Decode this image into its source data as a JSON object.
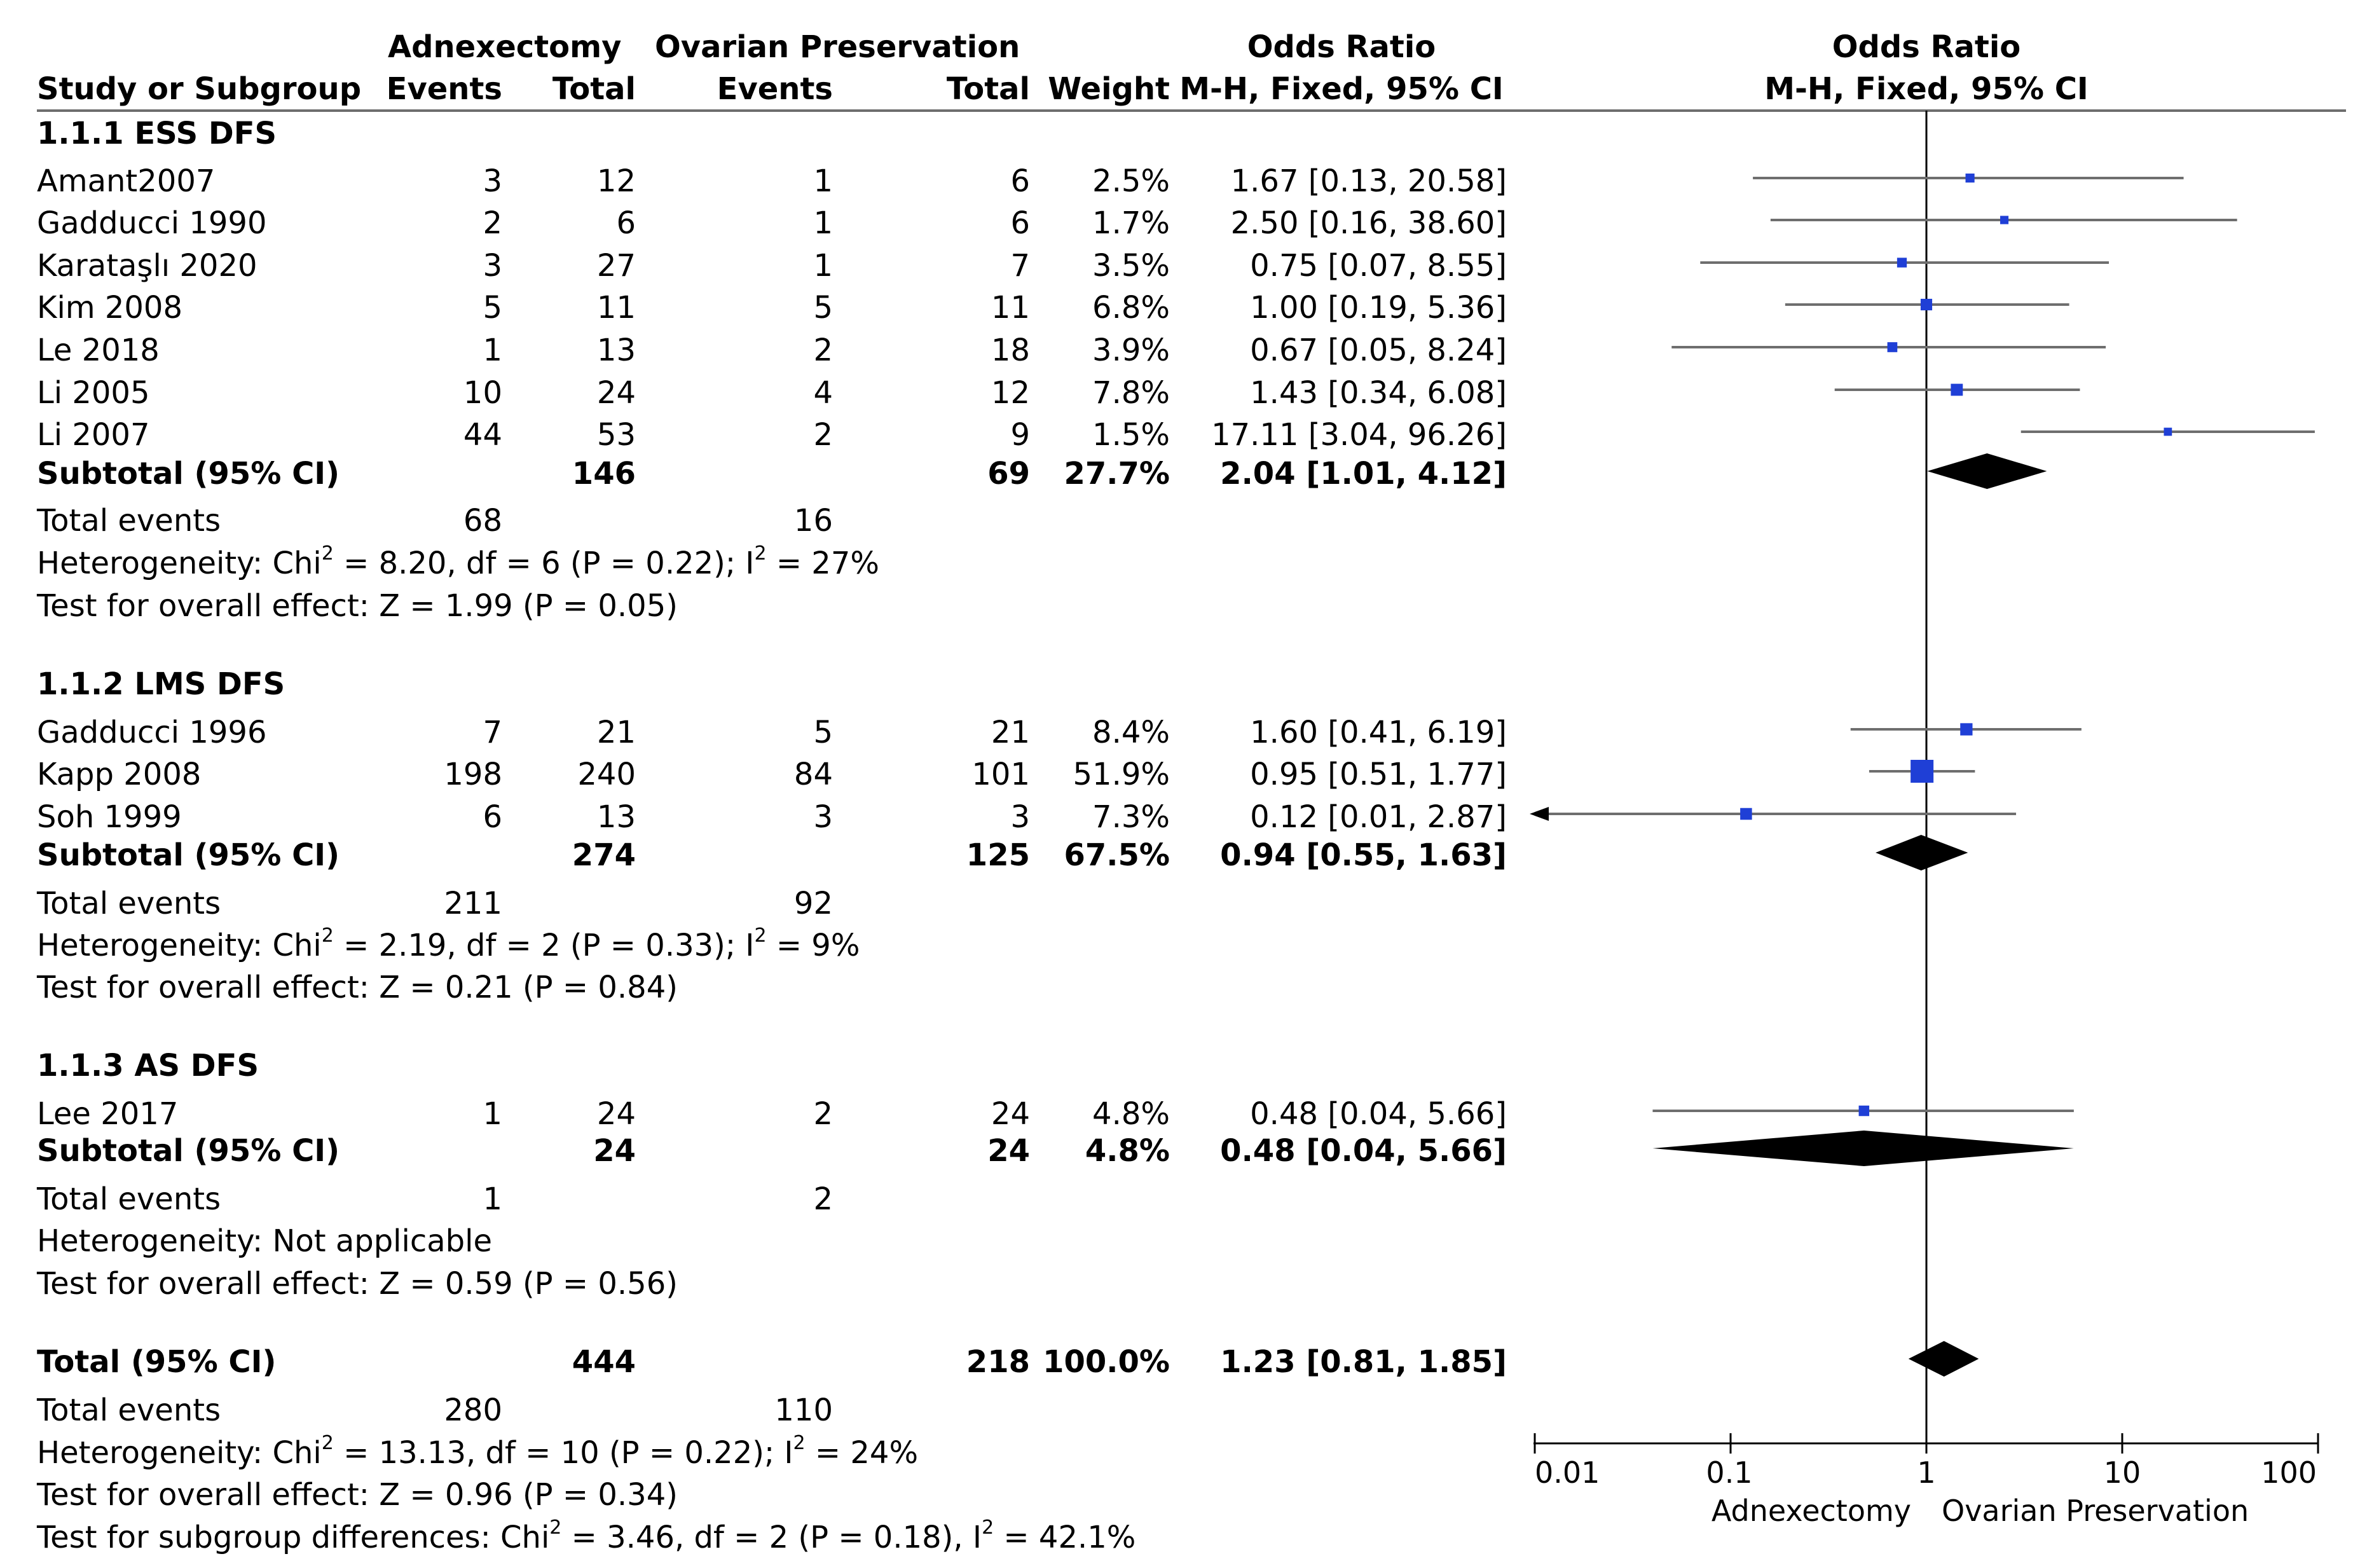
{
  "header": {
    "group1": "Adnexectomy",
    "group2": "Ovarian Preservation",
    "or_title": "Odds Ratio",
    "or_method": "M-H, Fixed, 95% CI",
    "plot_title": "Odds Ratio",
    "plot_method": "M-H, Fixed, 95% CI",
    "study_col": "Study or Subgroup",
    "events1": "Events",
    "total1": "Total",
    "events2": "Events",
    "total2": "Total",
    "weight": "Weight"
  },
  "subgroups": [
    {
      "title": "1.1.1 ESS DFS",
      "studies": [
        {
          "name": "Amant2007",
          "e1": "3",
          "t1": "12",
          "e2": "1",
          "t2": "6",
          "w": "2.5%",
          "ci": "1.67 [0.13, 20.58]"
        },
        {
          "name": "Gadducci 1990",
          "e1": "2",
          "t1": "6",
          "e2": "1",
          "t2": "6",
          "w": "1.7%",
          "ci": "2.50 [0.16, 38.60]"
        },
        {
          "name": "Karataşlı 2020",
          "e1": "3",
          "t1": "27",
          "e2": "1",
          "t2": "7",
          "w": "3.5%",
          "ci": "0.75 [0.07, 8.55]"
        },
        {
          "name": "Kim 2008",
          "e1": "5",
          "t1": "11",
          "e2": "5",
          "t2": "11",
          "w": "6.8%",
          "ci": "1.00 [0.19, 5.36]"
        },
        {
          "name": "Le 2018",
          "e1": "1",
          "t1": "13",
          "e2": "2",
          "t2": "18",
          "w": "3.9%",
          "ci": "0.67 [0.05, 8.24]"
        },
        {
          "name": "Li 2005",
          "e1": "10",
          "t1": "24",
          "e2": "4",
          "t2": "12",
          "w": "7.8%",
          "ci": "1.43 [0.34, 6.08]"
        },
        {
          "name": "Li 2007",
          "e1": "44",
          "t1": "53",
          "e2": "2",
          "t2": "9",
          "w": "1.5%",
          "ci": "17.11 [3.04, 96.26]"
        }
      ],
      "subtotal": {
        "label": "Subtotal (95% CI)",
        "t1": "146",
        "t2": "69",
        "w": "27.7%",
        "ci": "2.04 [1.01, 4.12]"
      },
      "events": {
        "label": "Total events",
        "e1": "68",
        "e2": "16"
      },
      "het": {
        "pre": "Heterogeneity: Chi",
        "mid": " = 8.20, df = 6 (P = 0.22); I",
        "post": " = 27%"
      },
      "test": "Test for overall effect: Z = 1.99 (P = 0.05)"
    },
    {
      "title": "1.1.2 LMS DFS",
      "studies": [
        {
          "name": "Gadducci 1996",
          "e1": "7",
          "t1": "21",
          "e2": "5",
          "t2": "21",
          "w": "8.4%",
          "ci": "1.60 [0.41, 6.19]"
        },
        {
          "name": "Kapp 2008",
          "e1": "198",
          "t1": "240",
          "e2": "84",
          "t2": "101",
          "w": "51.9%",
          "ci": "0.95 [0.51, 1.77]"
        },
        {
          "name": "Soh 1999",
          "e1": "6",
          "t1": "13",
          "e2": "3",
          "t2": "3",
          "w": "7.3%",
          "ci": "0.12 [0.01, 2.87]"
        }
      ],
      "subtotal": {
        "label": "Subtotal (95% CI)",
        "t1": "274",
        "t2": "125",
        "w": "67.5%",
        "ci": "0.94 [0.55, 1.63]"
      },
      "events": {
        "label": "Total events",
        "e1": "211",
        "e2": "92"
      },
      "het": {
        "pre": "Heterogeneity: Chi",
        "mid": " = 2.19, df = 2 (P = 0.33); I",
        "post": " = 9%"
      },
      "test": "Test for overall effect: Z = 0.21 (P = 0.84)"
    },
    {
      "title": "1.1.3 AS DFS",
      "studies": [
        {
          "name": "Lee 2017",
          "e1": "1",
          "t1": "24",
          "e2": "2",
          "t2": "24",
          "w": "4.8%",
          "ci": "0.48 [0.04, 5.66]"
        }
      ],
      "subtotal": {
        "label": "Subtotal (95% CI)",
        "t1": "24",
        "t2": "24",
        "w": "4.8%",
        "ci": "0.48 [0.04, 5.66]"
      },
      "events": {
        "label": "Total events",
        "e1": "1",
        "e2": "2"
      },
      "het_na": "Heterogeneity: Not applicable",
      "test": "Test for overall effect: Z = 0.59 (P = 0.56)"
    }
  ],
  "overall": {
    "label": "Total (95% CI)",
    "t1": "444",
    "t2": "218",
    "w": "100.0%",
    "ci": "1.23 [0.81, 1.85]",
    "events": {
      "label": "Total events",
      "e1": "280",
      "e2": "110"
    },
    "het": {
      "pre": "Heterogeneity: Chi",
      "mid": " = 13.13, df = 10 (P = 0.22); I",
      "post": " = 24%"
    },
    "test": "Test for overall effect: Z = 0.96 (P = 0.34)",
    "subgroup": {
      "pre": "Test for subgroup differences: Chi",
      "mid": " = 3.46, df = 2 (P = 0.18), I",
      "post": " = 42.1%"
    },
    "sup": "2"
  },
  "axis": {
    "ticks": [
      "0.01",
      "0.1",
      "1",
      "10",
      "100"
    ],
    "left_label": "Adnexectomy",
    "right_label": "Ovarian Preservation"
  },
  "chart_data": {
    "type": "forest",
    "title": "Odds Ratio M-H, Fixed, 95% CI",
    "scale": "log",
    "xlim": [
      0.01,
      100
    ],
    "null_value": 1,
    "studies": [
      {
        "name": "Amant2007",
        "or": 1.67,
        "lo": 0.13,
        "hi": 20.58,
        "weight": 2.5
      },
      {
        "name": "Gadducci 1990",
        "or": 2.5,
        "lo": 0.16,
        "hi": 38.6,
        "weight": 1.7
      },
      {
        "name": "Karataşlı 2020",
        "or": 0.75,
        "lo": 0.07,
        "hi": 8.55,
        "weight": 3.5
      },
      {
        "name": "Kim 2008",
        "or": 1.0,
        "lo": 0.19,
        "hi": 5.36,
        "weight": 6.8
      },
      {
        "name": "Le 2018",
        "or": 0.67,
        "lo": 0.05,
        "hi": 8.24,
        "weight": 3.9
      },
      {
        "name": "Li 2005",
        "or": 1.43,
        "lo": 0.34,
        "hi": 6.08,
        "weight": 7.8
      },
      {
        "name": "Li 2007",
        "or": 17.11,
        "lo": 3.04,
        "hi": 96.26,
        "weight": 1.5
      },
      {
        "name": "Gadducci 1996",
        "or": 1.6,
        "lo": 0.41,
        "hi": 6.19,
        "weight": 8.4
      },
      {
        "name": "Kapp 2008",
        "or": 0.95,
        "lo": 0.51,
        "hi": 1.77,
        "weight": 51.9
      },
      {
        "name": "Soh 1999",
        "or": 0.12,
        "lo": 0.01,
        "hi": 2.87,
        "weight": 7.3
      },
      {
        "name": "Lee 2017",
        "or": 0.48,
        "lo": 0.04,
        "hi": 5.66,
        "weight": 4.8
      }
    ],
    "diamonds": [
      {
        "name": "Subtotal ESS DFS",
        "or": 2.04,
        "lo": 1.01,
        "hi": 4.12
      },
      {
        "name": "Subtotal LMS DFS",
        "or": 0.94,
        "lo": 0.55,
        "hi": 1.63
      },
      {
        "name": "Subtotal AS DFS",
        "or": 0.48,
        "lo": 0.04,
        "hi": 5.66
      },
      {
        "name": "Total",
        "or": 1.23,
        "lo": 0.81,
        "hi": 1.85
      }
    ],
    "colors": {
      "square": "#1f3fd6",
      "line": "#6e6e6e",
      "diamond": "#000000"
    }
  }
}
